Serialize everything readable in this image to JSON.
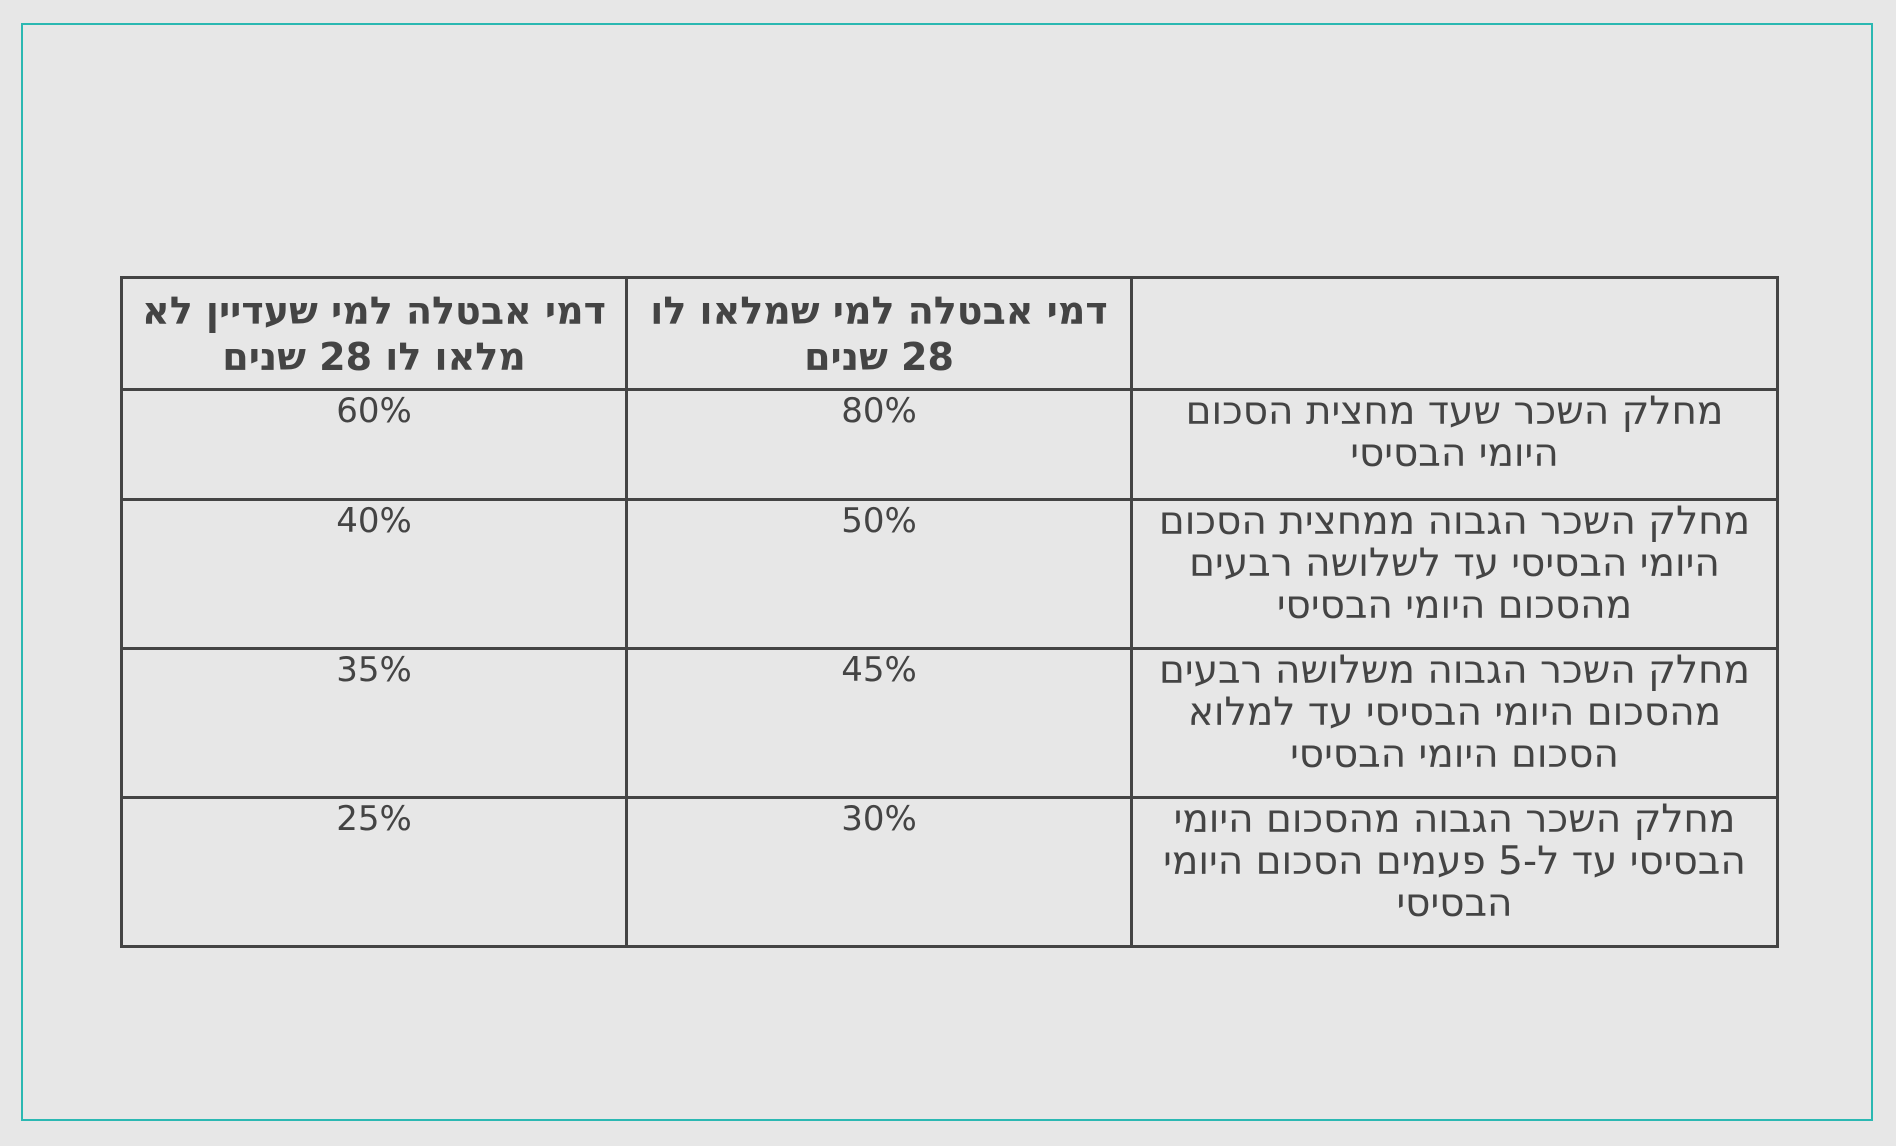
{
  "table": {
    "headers": {
      "label": "",
      "over_28": "דמי אבטלה למי שמלאו לו 28 שנים",
      "under_28": "דמי אבטלה למי שעדיין לא מלאו לו 28 שנים"
    },
    "rows": [
      {
        "label": "מחלק השכר שעד מחצית הסכום היומי הבסיסי",
        "over_28": "80%",
        "under_28": "60%"
      },
      {
        "label": "מחלק השכר הגבוה ממחצית הסכום היומי הבסיסי עד לשלושה רבעים מהסכום היומי הבסיסי",
        "over_28": "50%",
        "under_28": "40%"
      },
      {
        "label": "מחלק השכר הגבוה משלושה רבעים מהסכום היומי הבסיסי עד למלוא הסכום היומי הבסיסי",
        "over_28": "45%",
        "under_28": "35%"
      },
      {
        "label": "מחלק השכר הגבוה מהסכום היומי הבסיסי עד ל-5 פעמים הסכום היומי הבסיסי",
        "over_28": "30%",
        "under_28": "25%"
      }
    ]
  },
  "colors": {
    "over_28_header": "#f5903d",
    "under_28_header": "#e33d8f",
    "text": "#444444",
    "background": "#e7e7e7",
    "frame": "#2bb8b2"
  }
}
